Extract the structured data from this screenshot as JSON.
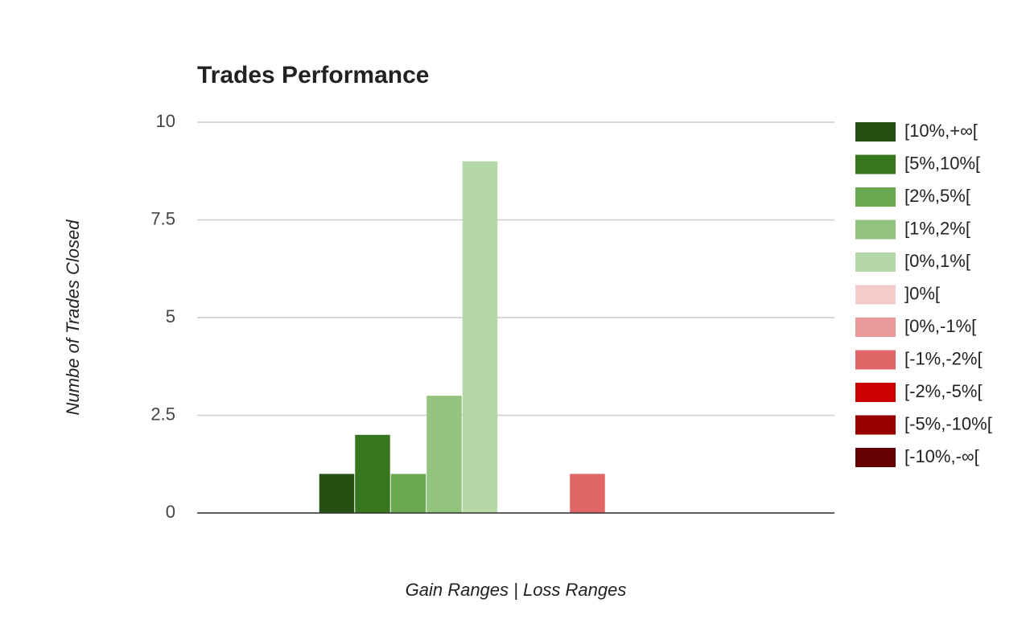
{
  "chart_data": {
    "type": "bar",
    "title": "Trades Performance",
    "x_label": "Gain Ranges | Loss Ranges",
    "y_label": "Numbe of Trades Closed",
    "categories": [
      null
    ],
    "series": [
      {
        "name": "[10%,+∞[",
        "color": "#274e13",
        "values": [
          1
        ]
      },
      {
        "name": "[5%,10%[",
        "color": "#38761d",
        "values": [
          2
        ]
      },
      {
        "name": "[2%,5%[",
        "color": "#6aa84f",
        "values": [
          1
        ]
      },
      {
        "name": "[1%,2%[",
        "color": "#93c47d",
        "values": [
          3
        ]
      },
      {
        "name": "[0%,1%[",
        "color": "#b6d7a8",
        "values": [
          9
        ]
      },
      {
        "name": "]0%[",
        "color": "#f4cccc",
        "values": [
          0
        ]
      },
      {
        "name": "[0%,-1%[",
        "color": "#ea9999",
        "values": [
          0
        ]
      },
      {
        "name": "[-1%,-2%[",
        "color": "#e06666",
        "values": [
          1
        ]
      },
      {
        "name": "[-2%,-5%[",
        "color": "#cc0000",
        "values": [
          0
        ]
      },
      {
        "name": "[-5%,-10%[",
        "color": "#990000",
        "values": [
          0
        ]
      },
      {
        "name": "[-10%,-∞[",
        "color": "#660000",
        "values": [
          0
        ]
      }
    ],
    "ylim": [
      0,
      10
    ],
    "yticks": [
      0,
      2.5,
      5,
      7.5,
      10
    ],
    "grid": true,
    "legend": "right"
  }
}
